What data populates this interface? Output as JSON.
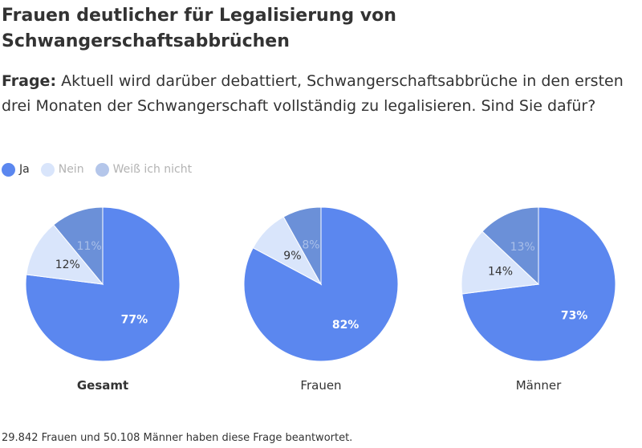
{
  "title": "Frauen deutlicher für Legalisierung von Schwangerschaftsabbrüchen",
  "question": {
    "label": "Frage:",
    "text": "Aktuell wird darüber debattiert, Schwangerschaftsabbrüche in den ersten drei Monaten der Schwangerschaft vollständig zu legalisieren. Sind Sie dafür?"
  },
  "legend": [
    {
      "label": "Ja",
      "color": "#5b87ef"
    },
    {
      "label": "Nein",
      "color": "#d9e5fb"
    },
    {
      "label": "Weiß ich nicht",
      "color": "#b4c6ea"
    }
  ],
  "colors": {
    "ja": "#5b87ef",
    "nein": "#d9e5fb",
    "weiss": "#6b90d8"
  },
  "chart_data": [
    {
      "type": "pie",
      "title": "Gesamt",
      "title_bold": true,
      "slices": [
        {
          "category": "Ja",
          "value": 77,
          "label": "77%"
        },
        {
          "category": "Nein",
          "value": 12,
          "label": "12%"
        },
        {
          "category": "Weiß ich nicht",
          "value": 11,
          "label": "11%"
        }
      ]
    },
    {
      "type": "pie",
      "title": "Frauen",
      "title_bold": false,
      "slices": [
        {
          "category": "Ja",
          "value": 82,
          "label": "82%"
        },
        {
          "category": "Nein",
          "value": 9,
          "label": "9%"
        },
        {
          "category": "Weiß ich nicht",
          "value": 8,
          "label": "8%"
        }
      ]
    },
    {
      "type": "pie",
      "title": "Männer",
      "title_bold": false,
      "slices": [
        {
          "category": "Ja",
          "value": 73,
          "label": "73%"
        },
        {
          "category": "Nein",
          "value": 14,
          "label": "14%"
        },
        {
          "category": "Weiß ich nicht",
          "value": 13,
          "label": "13%"
        }
      ]
    }
  ],
  "footnote": "29.842 Frauen und 50.108 Männer haben diese Frage beantwortet."
}
